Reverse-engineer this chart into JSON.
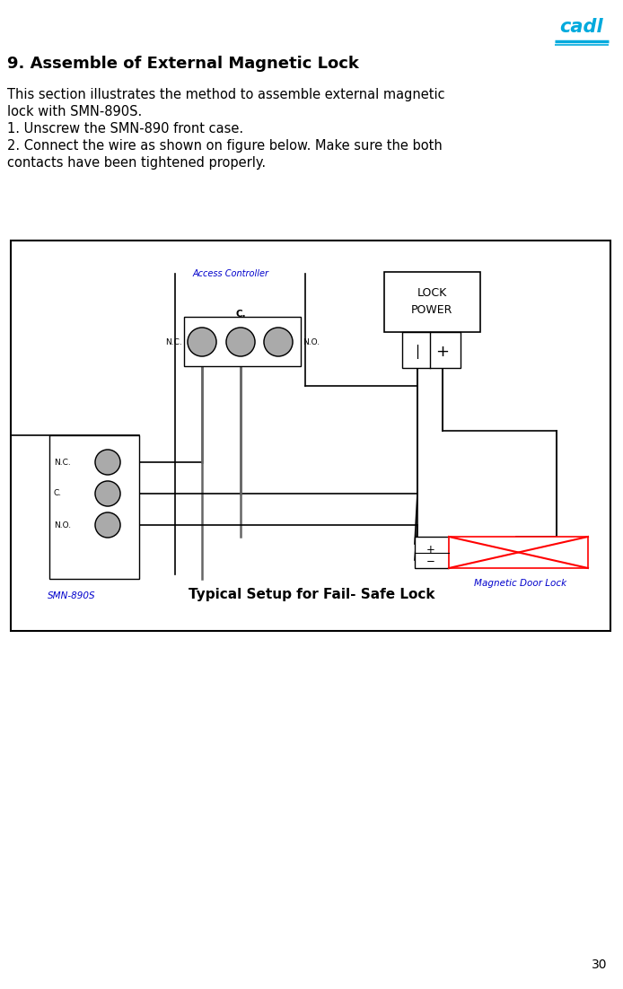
{
  "title": "9. Assemble of External Magnetic Lock",
  "body_lines": [
    "This section illustrates the method to assemble external magnetic",
    "lock with SMN-890S.",
    "1. Unscrew the SMN-890 front case.",
    "2. Connect the wire as shown on figure below. Make sure the both",
    "contacts have been tightened properly."
  ],
  "diagram_caption": "Typical Setup for Fail- Safe Lock",
  "logo_color": "#00AADD",
  "blue_label": "#0000CC",
  "page_number": "30",
  "bg": "#FFFFFF",
  "gray_circle": "#AAAAAA",
  "black": "#000000",
  "dark_wire": "#666666",
  "red": "#FF0000"
}
